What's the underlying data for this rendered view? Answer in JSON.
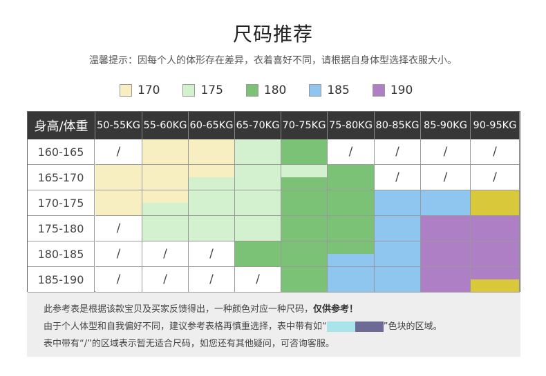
{
  "title": "尺码推荐",
  "tip": "温馨提示：因每个人的体形存在差异，衣着喜好不同，请根据自身体型选择衣服大小。",
  "legend": [
    {
      "label": "170",
      "color": "#f7eec2"
    },
    {
      "label": "175",
      "color": "#d3f0cf"
    },
    {
      "label": "180",
      "color": "#7cc276"
    },
    {
      "label": "185",
      "color": "#8fc6ef"
    },
    {
      "label": "190",
      "color": "#ae7fc4"
    }
  ],
  "extra_color": "#d9c83a",
  "table": {
    "corner": "身高/体重",
    "columns": [
      "50-55KG",
      "55-60KG",
      "60-65KG",
      "65-70KG",
      "70-75KG",
      "75-80KG",
      "80-85KG",
      "85-90KG",
      "90-95KG"
    ],
    "rows": [
      {
        "label": "160-165",
        "cells": [
          "/",
          "170",
          "170",
          "175",
          "180",
          "/",
          "/",
          "/",
          "/"
        ]
      },
      {
        "label": "165-170",
        "cells": [
          "170",
          "170",
          "170|175",
          "175",
          "175|180",
          "180",
          "/",
          "/",
          "/"
        ]
      },
      {
        "label": "170-175",
        "cells": [
          "170",
          "170|175",
          "175",
          "175",
          "180",
          "180",
          "185",
          "185",
          "yellow"
        ]
      },
      {
        "label": "175-180",
        "cells": [
          "/",
          "175",
          "175",
          "175",
          "180",
          "180",
          "185",
          "190",
          "190"
        ]
      },
      {
        "label": "180-185",
        "cells": [
          "/",
          "/",
          "/",
          "180",
          "180",
          "180|185",
          "185",
          "190",
          "190"
        ]
      },
      {
        "label": "185-190",
        "cells": [
          "/",
          "/",
          "/",
          "/",
          "180",
          "185",
          "185",
          "190",
          "190|yellow"
        ]
      }
    ]
  },
  "notes": {
    "line1_main": "此参考表是根据该款宝贝及买家反馈得出，一种颜色对应一种尺码，",
    "line1_bold": "仅供参考！",
    "line2_before": "由于个人体型和自我偏好不同，建议参考表格再慎重选择，表中带有如“",
    "line2_after": "”色块的区域。",
    "line2_colors": [
      "#a8e4ea",
      "#6e6a96"
    ],
    "line3": "表中带有“/”的区域表示暂无适合尺码，如您还有其他疑问，可咨询客服。"
  }
}
